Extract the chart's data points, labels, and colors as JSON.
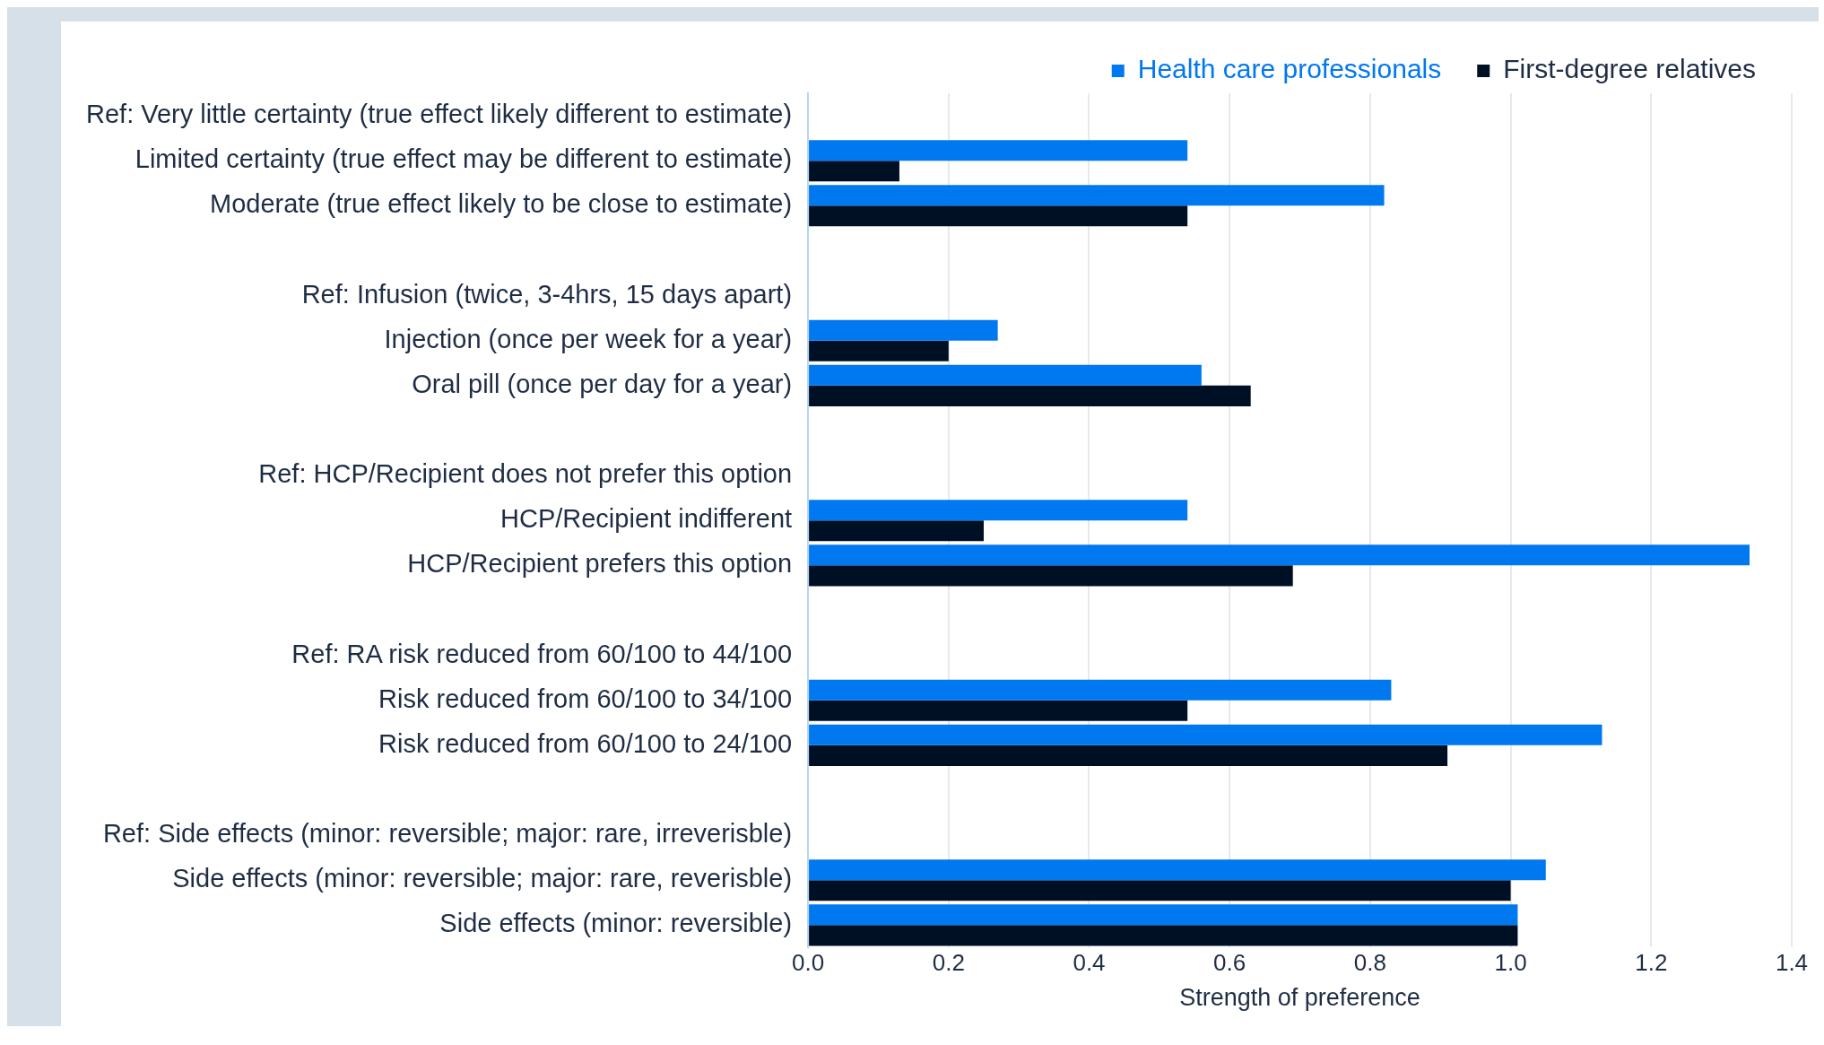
{
  "chart_data": {
    "type": "bar",
    "orientation": "horizontal",
    "xlabel": "Strength of preference",
    "categories": [
      "Ref: Very little certainty (true effect likely different to estimate)",
      "Limited certainty (true effect may be different to estimate)",
      "Moderate (true effect likely to be close to estimate)",
      null,
      "Ref: Infusion (twice, 3-4hrs, 15 days apart)",
      "Injection (once per week for a year)",
      "Oral pill (once per day for a year)",
      null,
      "Ref: HCP/Recipient does not prefer this option",
      "HCP/Recipient indifferent",
      "HCP/Recipient prefers this option",
      null,
      "Ref: RA risk reduced from 60/100 to 44/100",
      "Risk reduced from 60/100 to 34/100",
      "Risk reduced from 60/100 to 24/100",
      null,
      "Ref: Side effects (minor: reversible; major: rare, irreverisble)",
      "Side effects (minor: reversible; major: rare, reverisble)",
      "Side effects (minor: reversible)"
    ],
    "series": [
      {
        "name": "Health care professionals",
        "color": "#0078f0",
        "values": [
          null,
          0.54,
          0.82,
          null,
          null,
          0.27,
          0.56,
          null,
          null,
          0.54,
          1.34,
          null,
          null,
          0.83,
          1.13,
          null,
          null,
          1.05,
          1.01
        ]
      },
      {
        "name": "First-degree relatives",
        "color": "#001024",
        "values": [
          null,
          0.13,
          0.54,
          null,
          null,
          0.2,
          0.63,
          null,
          null,
          0.25,
          0.69,
          null,
          null,
          0.54,
          0.91,
          null,
          null,
          1.0,
          1.01
        ]
      }
    ],
    "xlim": [
      0,
      1.4
    ],
    "xticks": [
      {
        "value": 0,
        "label": "0.0"
      },
      {
        "value": 0.2,
        "label": "0.2"
      },
      {
        "value": 0.4,
        "label": "0.4"
      },
      {
        "value": 0.6,
        "label": "0.6"
      },
      {
        "value": 0.8,
        "label": "0.8"
      },
      {
        "value": 1,
        "label": "1.0"
      },
      {
        "value": 1.2,
        "label": "1.2"
      },
      {
        "value": 1.4,
        "label": "1.4"
      }
    ],
    "grid": "x",
    "legend": "top right"
  }
}
